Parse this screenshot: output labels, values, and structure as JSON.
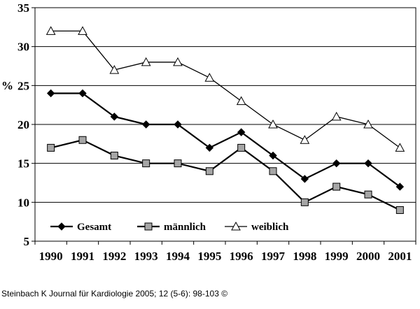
{
  "chart_data": {
    "type": "line",
    "title": "",
    "xlabel": "",
    "ylabel": "%",
    "ylim": [
      5,
      35
    ],
    "ytick_step": 5,
    "categories": [
      "1990",
      "1991",
      "1992",
      "1993",
      "1994",
      "1995",
      "1996",
      "1997",
      "1998",
      "1999",
      "2000",
      "2001"
    ],
    "series": [
      {
        "name": "Gesamt",
        "marker": "diamond",
        "values": [
          24,
          24,
          21,
          20,
          20,
          17,
          19,
          16,
          13,
          15,
          15,
          12
        ]
      },
      {
        "name": "männlich",
        "marker": "square",
        "values": [
          17,
          18,
          16,
          15,
          15,
          14,
          17,
          14,
          10,
          12,
          11,
          9
        ]
      },
      {
        "name": "weiblich",
        "marker": "triangle",
        "values": [
          32,
          32,
          27,
          28,
          28,
          26,
          23,
          20,
          18,
          21,
          20,
          17
        ]
      }
    ],
    "grid": "horizontal",
    "legend_position": "bottom-left"
  },
  "caption": "Steinbach K Journal für Kardiologie 2005; 12 (5-6): 98-103 ©",
  "colors": {
    "line": "#000000",
    "diamond": "#000000",
    "square": "#a6a6a6",
    "triangle": "#ffffff"
  }
}
